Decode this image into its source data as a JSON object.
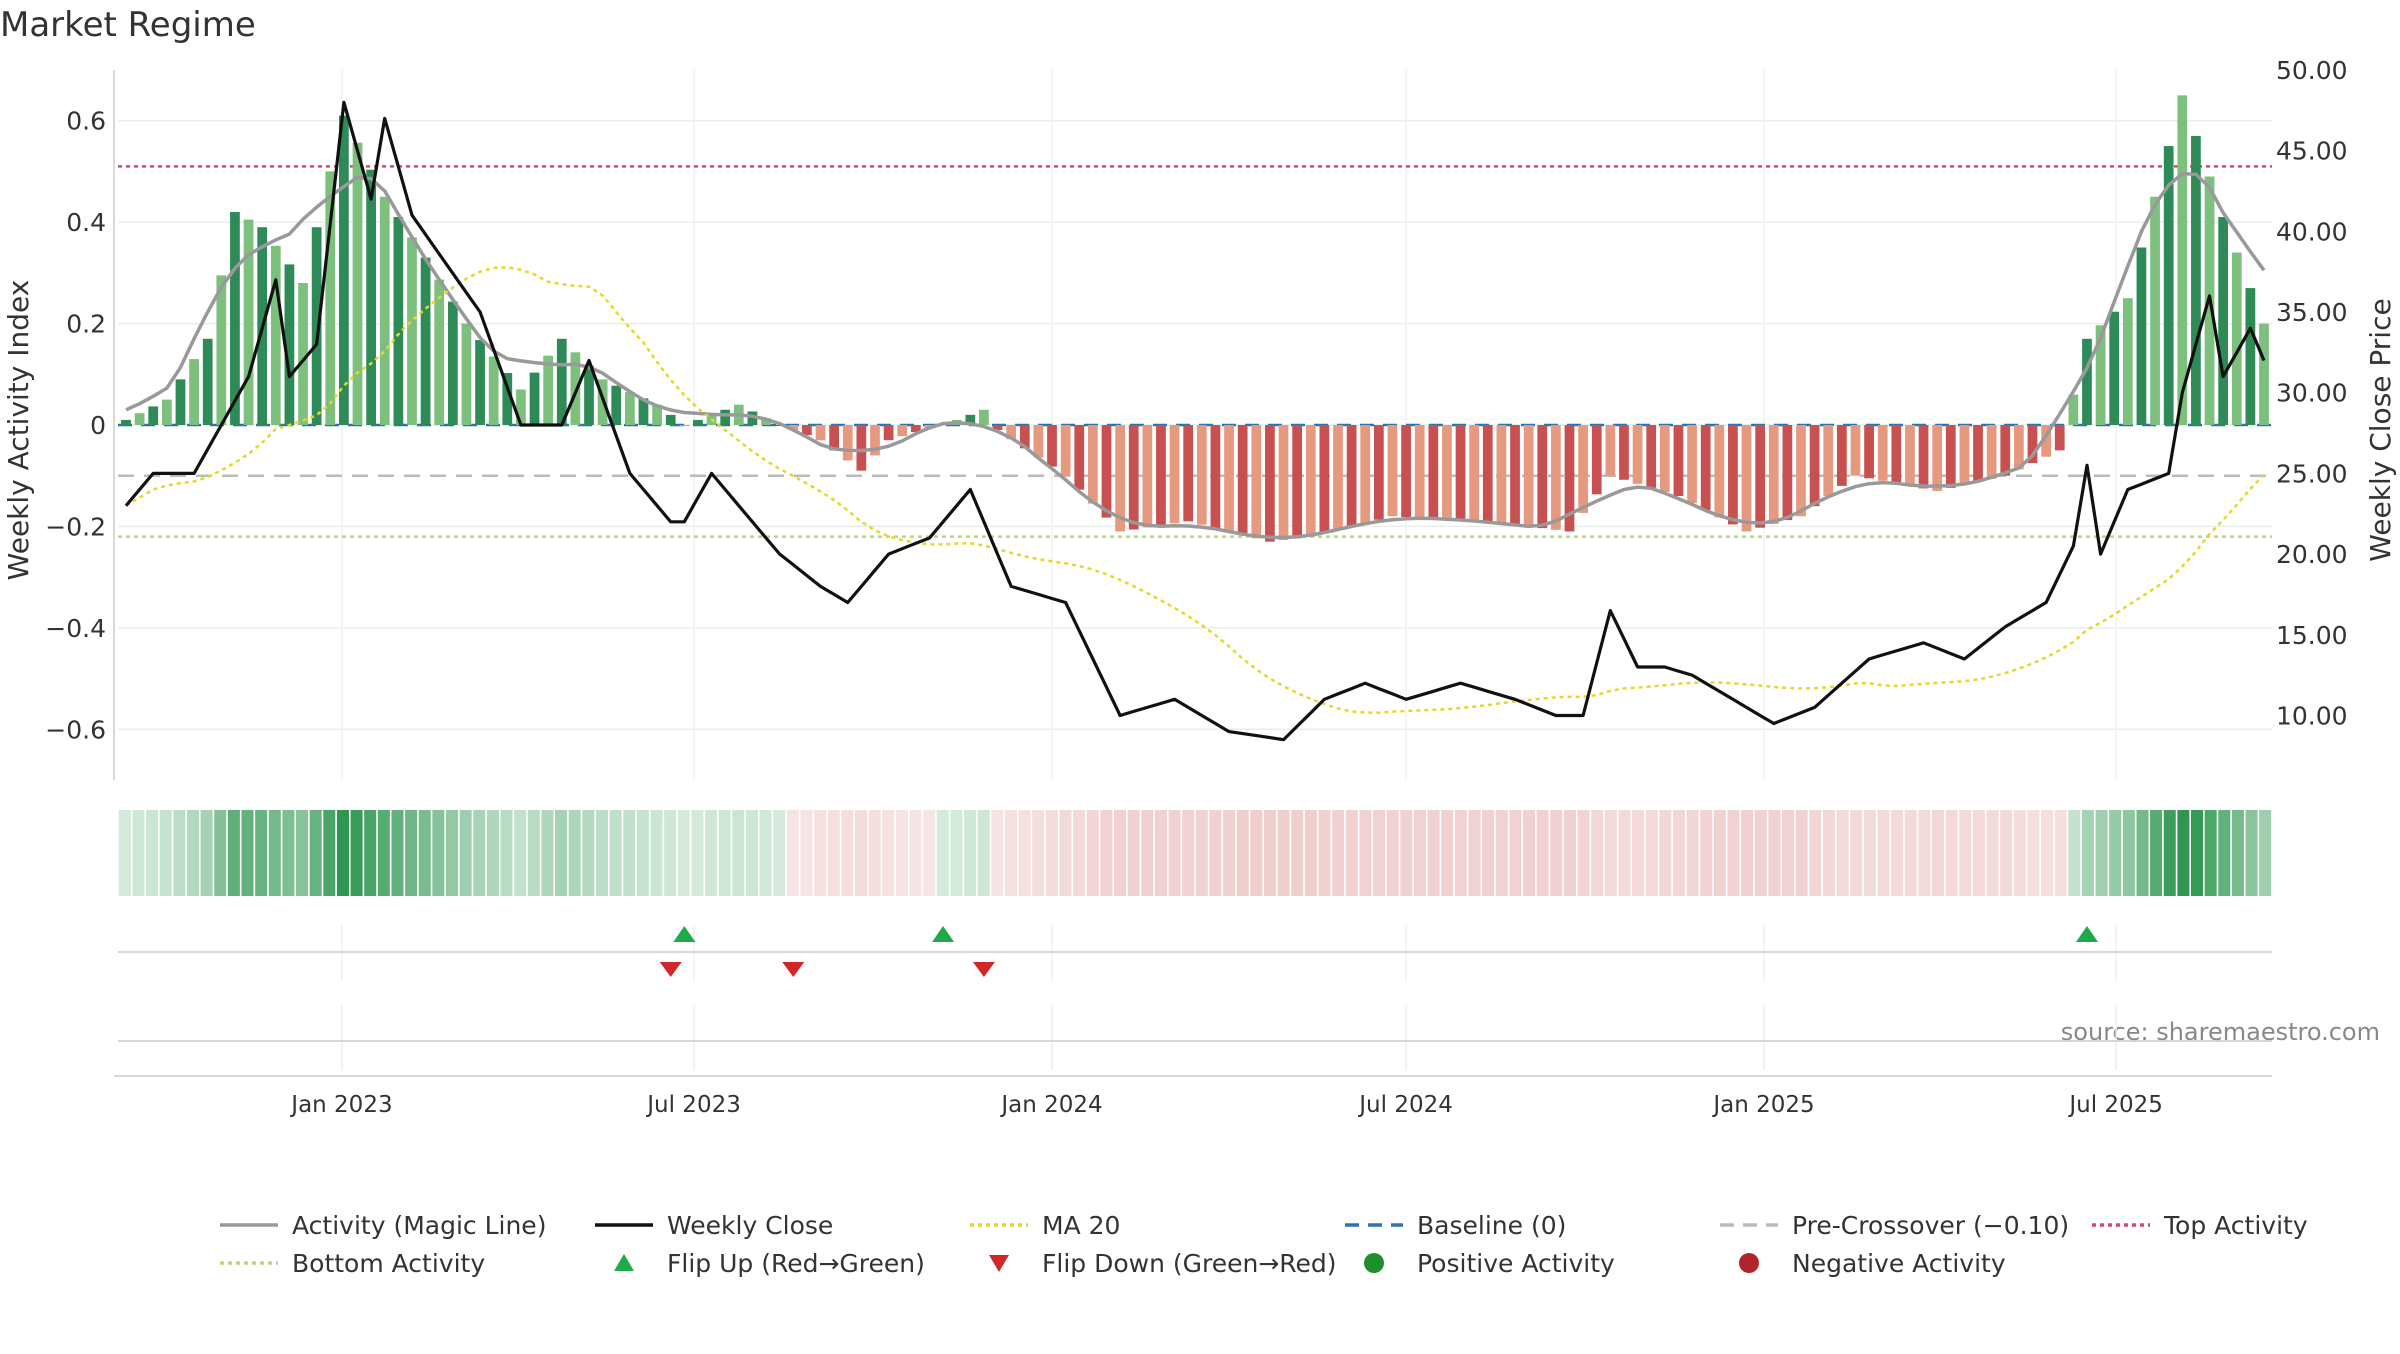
{
  "chart_data": {
    "type": "bar",
    "title": "Market Regime",
    "source": "source: sharemaestro.com",
    "ylabel_left": "Weekly Activity Index",
    "ylabel_right": "Weekly Close Price",
    "x_range": [
      "2022-09-12",
      "2025-09-15"
    ],
    "ylim_left": [
      -0.7,
      0.7
    ],
    "ylim_right": [
      6.0,
      50.0
    ],
    "yticks_left": [
      0.6,
      0.4,
      0.2,
      0,
      -0.2,
      -0.4,
      -0.6
    ],
    "yticks_left_labels": [
      "0.6",
      "0.4",
      "0.2",
      "0",
      "−0.2",
      "−0.4",
      "−0.6"
    ],
    "yticks_right": [
      50,
      45,
      40,
      35,
      30,
      25,
      20,
      15,
      10
    ],
    "yticks_right_labels": [
      "50.00",
      "45.00",
      "40.00",
      "35.00",
      "30.00",
      "25.00",
      "20.00",
      "15.00",
      "10.00"
    ],
    "xticks": [
      {
        "date": "2023-01-01",
        "label": "Jan 2023"
      },
      {
        "date": "2023-07-01",
        "label": "Jul 2023"
      },
      {
        "date": "2024-01-01",
        "label": "Jan 2024"
      },
      {
        "date": "2024-07-01",
        "label": "Jul 2024"
      },
      {
        "date": "2025-01-01",
        "label": "Jan 2025"
      },
      {
        "date": "2025-07-01",
        "label": "Jul 2025"
      }
    ],
    "reference_lines": {
      "top_activity": 0.51,
      "baseline": 0,
      "pre_crossover": -0.1,
      "bottom_activity": -0.22
    },
    "activity_key": [
      [
        "2022-09-12",
        0.01
      ],
      [
        "2022-10-03",
        0.05
      ],
      [
        "2022-10-24",
        0.17
      ],
      [
        "2022-11-07",
        0.42
      ],
      [
        "2022-11-21",
        0.39
      ],
      [
        "2022-12-12",
        0.28
      ],
      [
        "2023-01-02",
        0.61
      ],
      [
        "2023-01-23",
        0.45
      ],
      [
        "2023-02-13",
        0.33
      ],
      [
        "2023-03-06",
        0.2
      ],
      [
        "2023-04-03",
        0.07
      ],
      [
        "2023-04-24",
        0.17
      ],
      [
        "2023-05-15",
        0.09
      ],
      [
        "2023-06-12",
        0.04
      ],
      [
        "2023-06-26",
        0.0
      ],
      [
        "2023-07-24",
        0.04
      ],
      [
        "2023-08-14",
        0.0
      ],
      [
        "2023-09-04",
        -0.03
      ],
      [
        "2023-09-25",
        -0.09
      ],
      [
        "2023-10-09",
        -0.03
      ],
      [
        "2023-11-13",
        0.01
      ],
      [
        "2023-11-27",
        0.03
      ],
      [
        "2023-12-04",
        -0.01
      ],
      [
        "2024-01-08",
        -0.1
      ],
      [
        "2024-02-05",
        -0.21
      ],
      [
        "2024-03-11",
        -0.19
      ],
      [
        "2024-04-22",
        -0.23
      ],
      [
        "2024-05-13",
        -0.22
      ],
      [
        "2024-06-24",
        -0.18
      ],
      [
        "2024-08-12",
        -0.19
      ],
      [
        "2024-09-23",
        -0.21
      ],
      [
        "2024-10-14",
        -0.1
      ],
      [
        "2024-11-18",
        -0.14
      ],
      [
        "2024-12-23",
        -0.21
      ],
      [
        "2025-01-20",
        -0.18
      ],
      [
        "2025-02-17",
        -0.1
      ],
      [
        "2025-03-31",
        -0.13
      ],
      [
        "2025-05-05",
        -0.1
      ],
      [
        "2025-06-02",
        -0.05
      ],
      [
        "2025-06-16",
        0.17
      ],
      [
        "2025-07-07",
        0.25
      ],
      [
        "2025-08-04",
        0.65
      ],
      [
        "2025-08-25",
        0.41
      ],
      [
        "2025-09-15",
        0.2
      ]
    ],
    "close_key": [
      [
        "2022-09-12",
        23.0
      ],
      [
        "2022-09-26",
        25.0
      ],
      [
        "2022-10-17",
        25.0
      ],
      [
        "2022-10-31",
        28.0
      ],
      [
        "2022-11-14",
        31.0
      ],
      [
        "2022-11-28",
        37.0
      ],
      [
        "2022-12-05",
        31.0
      ],
      [
        "2022-12-19",
        33.0
      ],
      [
        "2023-01-02",
        48.0
      ],
      [
        "2023-01-16",
        42.0
      ],
      [
        "2023-01-23",
        47.0
      ],
      [
        "2023-02-06",
        41.0
      ],
      [
        "2023-03-13",
        35.0
      ],
      [
        "2023-04-03",
        28.0
      ],
      [
        "2023-04-24",
        28.0
      ],
      [
        "2023-05-08",
        32.0
      ],
      [
        "2023-05-29",
        25.0
      ],
      [
        "2023-06-19",
        22.0
      ],
      [
        "2023-06-26",
        22.0
      ],
      [
        "2023-07-10",
        25.0
      ],
      [
        "2023-08-14",
        20.0
      ],
      [
        "2023-09-04",
        18.0
      ],
      [
        "2023-09-18",
        17.0
      ],
      [
        "2023-10-09",
        20.0
      ],
      [
        "2023-10-30",
        21.0
      ],
      [
        "2023-11-20",
        24.0
      ],
      [
        "2023-12-11",
        18.0
      ],
      [
        "2024-01-08",
        17.0
      ],
      [
        "2024-02-05",
        10.0
      ],
      [
        "2024-03-04",
        11.0
      ],
      [
        "2024-04-01",
        9.0
      ],
      [
        "2024-04-29",
        8.5
      ],
      [
        "2024-05-20",
        11.0
      ],
      [
        "2024-06-10",
        12.0
      ],
      [
        "2024-07-01",
        11.0
      ],
      [
        "2024-07-29",
        12.0
      ],
      [
        "2024-08-26",
        11.0
      ],
      [
        "2024-09-16",
        10.0
      ],
      [
        "2024-09-30",
        10.0
      ],
      [
        "2024-10-14",
        16.5
      ],
      [
        "2024-10-28",
        13.0
      ],
      [
        "2024-11-11",
        13.0
      ],
      [
        "2024-11-25",
        12.5
      ],
      [
        "2024-12-16",
        11.0
      ],
      [
        "2025-01-06",
        9.5
      ],
      [
        "2025-01-27",
        10.5
      ],
      [
        "2025-02-24",
        13.5
      ],
      [
        "2025-03-24",
        14.5
      ],
      [
        "2025-04-14",
        13.5
      ],
      [
        "2025-05-05",
        15.5
      ],
      [
        "2025-05-26",
        17.0
      ],
      [
        "2025-06-09",
        20.5
      ],
      [
        "2025-06-16",
        25.5
      ],
      [
        "2025-06-23",
        20.0
      ],
      [
        "2025-07-07",
        24.0
      ],
      [
        "2025-07-28",
        25.0
      ],
      [
        "2025-08-04",
        30.0
      ],
      [
        "2025-08-18",
        36.0
      ],
      [
        "2025-08-25",
        31.0
      ],
      [
        "2025-09-08",
        34.0
      ],
      [
        "2025-09-15",
        32.0
      ]
    ],
    "flip_up_dates": [
      "2023-06-26",
      "2023-11-06",
      "2025-06-16"
    ],
    "flip_down_dates": [
      "2023-06-19",
      "2023-08-21",
      "2023-11-27"
    ],
    "colors": {
      "positive_strong": "#2e8b57",
      "positive_light": "#7dbf7d",
      "negative_strong": "#c75050",
      "negative_light": "#e59a80",
      "magic_line": "#999999",
      "weekly_close": "#111111",
      "ma20": "#e6d82a",
      "baseline": "#2d73b3",
      "pre_crossover": "#bbbbbb",
      "top_activity": "#d94670",
      "bottom_activity": "#b7d97a",
      "flip_up": "#1faa4a",
      "flip_down": "#d02828",
      "positive_dot": "#1f8f2c",
      "negative_dot": "#b0242c"
    },
    "legend": [
      {
        "label": "Activity (Magic Line)",
        "type": "line",
        "color": "#999999",
        "dash": ""
      },
      {
        "label": "Weekly Close",
        "type": "line",
        "color": "#111111",
        "dash": ""
      },
      {
        "label": "MA 20",
        "type": "line",
        "color": "#e6d82a",
        "dash": "4 4"
      },
      {
        "label": "Baseline (0)",
        "type": "line",
        "color": "#2d73b3",
        "dash": "14 9"
      },
      {
        "label": "Pre-Crossover (−0.10)",
        "type": "line",
        "color": "#bbbbbb",
        "dash": "14 9"
      },
      {
        "label": "Top Activity",
        "type": "line",
        "color": "#d94670",
        "dash": "4 4"
      },
      {
        "label": "Bottom Activity",
        "type": "line",
        "color": "#b7d97a",
        "dash": "4 4"
      },
      {
        "label": "Flip Up (Red→Green)",
        "type": "tri-up",
        "color": "#1faa4a"
      },
      {
        "label": "Flip Down (Green→Red)",
        "type": "tri-down",
        "color": "#d02828"
      },
      {
        "label": "Positive Activity",
        "type": "dot",
        "color": "#1f8f2c"
      },
      {
        "label": "Negative Activity",
        "type": "dot",
        "color": "#b0242c"
      }
    ]
  }
}
